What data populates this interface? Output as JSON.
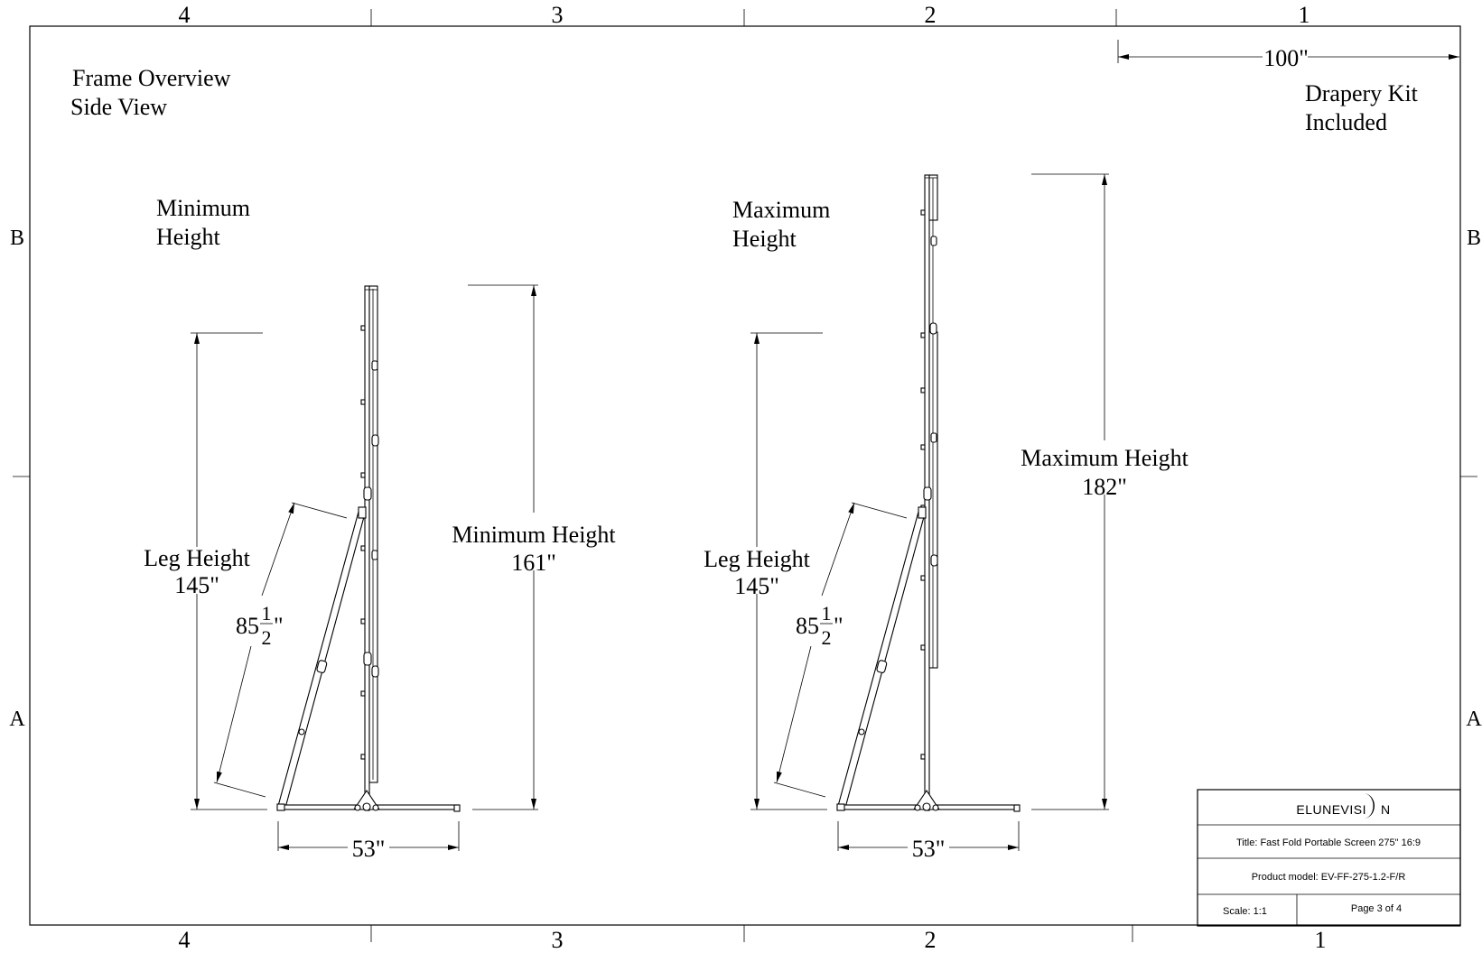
{
  "border": {
    "columns_top": [
      "4",
      "3",
      "2",
      "1"
    ],
    "columns_bottom": [
      "4",
      "3",
      "2",
      "1"
    ],
    "rows_left": [
      "B",
      "A"
    ],
    "rows_right": [
      "B",
      "A"
    ]
  },
  "overview": {
    "line1": "Frame Overview",
    "line2": "Side View"
  },
  "drapery": {
    "line1": "Drapery Kit",
    "line2": "Included",
    "width": "100\""
  },
  "min_view": {
    "title_line1": "Minimum",
    "title_line2": "Height",
    "leg_label": "Leg Height",
    "leg_value": "145\"",
    "brace_whole": "85",
    "brace_num": "1",
    "brace_den": "2",
    "brace_unit": "\"",
    "height_label": "Minimum Height",
    "height_value": "161\"",
    "base_width": "53\""
  },
  "max_view": {
    "title_line1": "Maximum",
    "title_line2": "Height",
    "leg_label": "Leg Height",
    "leg_value": "145\"",
    "brace_whole": "85",
    "brace_num": "1",
    "brace_den": "2",
    "brace_unit": "\"",
    "height_label": "Maximum Height",
    "height_value": "182\"",
    "base_width": "53\""
  },
  "title_block": {
    "logo_text_a": "ELUNEVISI",
    "logo_text_b": "N",
    "title": "Title: Fast Fold Portable Screen 275\" 16:9",
    "model": "Product model: EV-FF-275-1.2-F/R",
    "scale": "Scale: 1:1",
    "page": "Page 3 of 4"
  }
}
